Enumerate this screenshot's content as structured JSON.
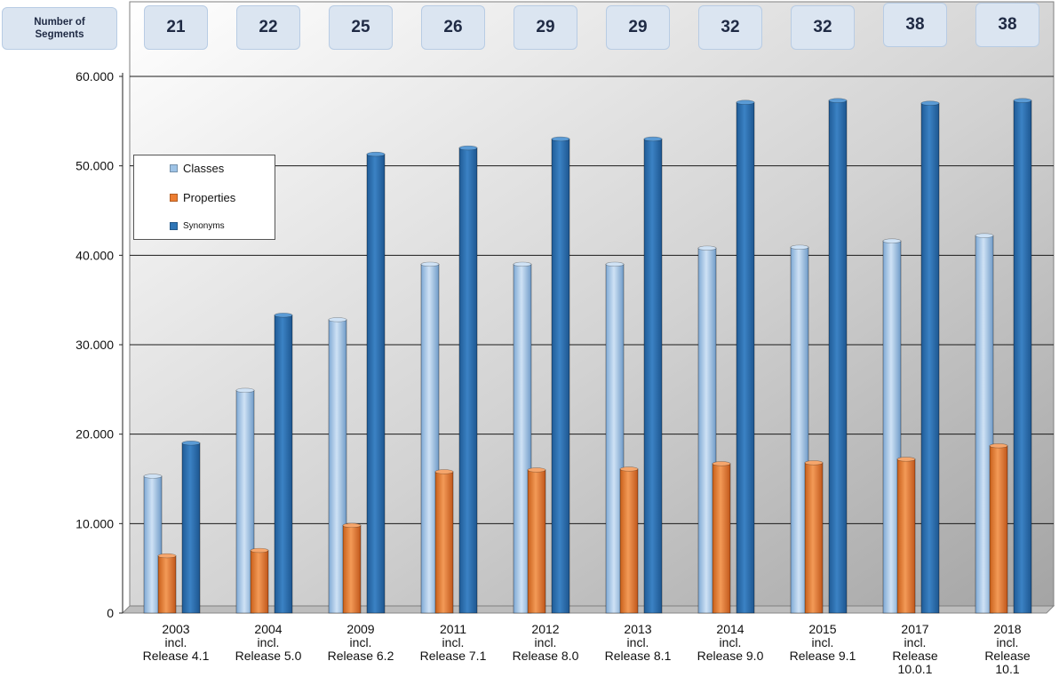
{
  "segments": {
    "label": "Number of\nSegments",
    "values": [
      "21",
      "22",
      "25",
      "26",
      "29",
      "29",
      "32",
      "32",
      "38",
      "38"
    ]
  },
  "legend": {
    "classes": "Classes",
    "properties": "Properties",
    "synonyms": "Synonyms"
  },
  "colors": {
    "classes": "#9dc3e6",
    "properties": "#ed7d31",
    "synonyms": "#2e75b6",
    "segment_box": "#dbe5f1",
    "segment_border": "#b8cce4",
    "gridline": "#1a1a1a"
  },
  "chart_data": {
    "type": "bar",
    "categories": [
      [
        "2003",
        "incl.",
        "Release 4.1"
      ],
      [
        "2004",
        "incl.",
        "Release 5.0"
      ],
      [
        "2009",
        "incl.",
        "Release 6.2"
      ],
      [
        "2011",
        "incl.",
        "Release 7.1"
      ],
      [
        "2012",
        "incl.",
        "Release 8.0"
      ],
      [
        "2013",
        "incl.",
        "Release 8.1"
      ],
      [
        "2014",
        "incl.",
        "Release 9.0"
      ],
      [
        "2015",
        "incl.",
        "Release 9.1"
      ],
      [
        "2017",
        "incl.",
        "Release",
        "10.0.1"
      ],
      [
        "2018",
        "incl.",
        "Release",
        "10.1"
      ]
    ],
    "series": [
      {
        "name": "Classes",
        "values": [
          15300,
          24900,
          32800,
          39000,
          39000,
          39000,
          40800,
          40900,
          41600,
          42200
        ]
      },
      {
        "name": "Properties",
        "values": [
          6400,
          7000,
          9800,
          15800,
          16000,
          16100,
          16700,
          16800,
          17200,
          18700
        ]
      },
      {
        "name": "Synonyms",
        "values": [
          19000,
          33300,
          51300,
          52000,
          53000,
          53000,
          57100,
          57300,
          57000,
          57300
        ]
      }
    ],
    "ylim": [
      0,
      60000
    ],
    "yticks": [
      "0",
      "10.000",
      "20.000",
      "30.000",
      "40.000",
      "50.000",
      "60.000"
    ],
    "grid": true,
    "legend_position": "upper-left"
  }
}
